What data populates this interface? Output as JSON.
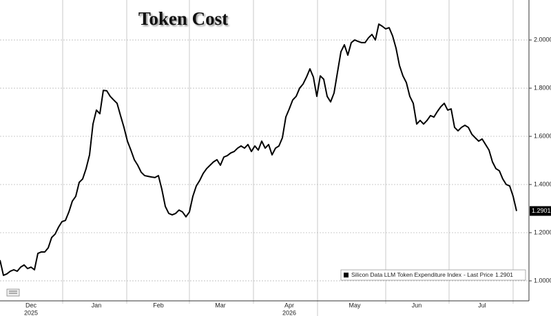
{
  "chart_data": {
    "type": "line",
    "title": "Token Cost",
    "categories": [
      null,
      null,
      null,
      null,
      null,
      null,
      null,
      null,
      null,
      "Dec",
      null,
      null,
      null,
      null,
      null,
      null,
      null,
      null,
      null,
      null,
      null,
      null,
      null,
      null,
      null,
      null,
      null,
      null,
      "Jan",
      null,
      null,
      null,
      null,
      null,
      null,
      null,
      null,
      null,
      null,
      null,
      null,
      null,
      null,
      null,
      null,
      null,
      "Feb",
      null,
      null,
      null,
      null,
      null,
      null,
      null,
      null,
      null,
      null,
      null,
      null,
      null,
      null,
      null,
      null,
      null,
      "Mar",
      null,
      null,
      null,
      null,
      null,
      null,
      null,
      null,
      null,
      null,
      null,
      null,
      null,
      null,
      null,
      null,
      null,
      null,
      null,
      "Apr",
      null,
      null,
      null,
      null,
      null,
      null,
      null,
      null,
      null,
      null,
      null,
      null,
      null,
      null,
      null,
      null,
      null,
      null,
      "May",
      null,
      null,
      null,
      null,
      null,
      null,
      null,
      null,
      null,
      null,
      null,
      null,
      null,
      null,
      null,
      null,
      null,
      "Jun",
      null,
      null,
      null,
      null,
      null,
      null,
      null,
      null,
      null,
      null,
      null,
      null,
      null,
      null,
      null,
      null,
      null,
      null,
      "Jul",
      null,
      null,
      null,
      null,
      null,
      null,
      null,
      null,
      null,
      null
    ],
    "category_years": [
      null,
      null,
      null,
      null,
      null,
      null,
      null,
      null,
      null,
      "2025",
      null,
      null,
      null,
      null,
      null,
      null,
      null,
      null,
      null,
      null,
      null,
      null,
      null,
      null,
      null,
      null,
      null,
      null,
      null,
      null,
      null,
      null,
      null,
      null,
      null,
      null,
      null,
      null,
      null,
      null,
      null,
      null,
      null,
      null,
      null,
      null,
      null,
      null,
      null,
      null,
      null,
      null,
      null,
      null,
      null,
      null,
      null,
      null,
      null,
      null,
      null,
      null,
      null,
      null,
      null,
      null,
      null,
      null,
      null,
      null,
      null,
      null,
      null,
      null,
      null,
      null,
      null,
      null,
      null,
      null,
      null,
      null,
      null,
      null,
      "2026",
      null,
      null,
      null,
      null,
      null,
      null,
      null,
      null,
      null,
      null,
      null,
      null,
      null,
      null,
      null,
      null,
      null,
      null,
      null,
      null,
      null,
      null,
      null,
      null,
      null,
      null,
      null,
      null,
      null,
      null,
      null,
      null,
      null,
      null,
      null,
      null,
      null,
      null,
      null,
      null,
      null,
      null,
      null,
      null,
      null,
      null,
      null,
      null,
      null,
      null,
      null,
      null,
      null,
      null,
      null,
      null,
      null,
      null,
      null,
      null,
      null,
      null,
      null,
      null,
      null,
      null
    ],
    "series": [
      {
        "name": "Silicon Data LLM Token Expenditure Index",
        "color": "#000000",
        "values": [
          1.086,
          1.023,
          1.029,
          1.04,
          1.046,
          1.04,
          1.057,
          1.066,
          1.051,
          1.057,
          1.046,
          1.114,
          1.12,
          1.12,
          1.137,
          1.18,
          1.194,
          1.223,
          1.246,
          1.251,
          1.286,
          1.331,
          1.351,
          1.409,
          1.423,
          1.466,
          1.523,
          1.651,
          1.709,
          1.694,
          1.791,
          1.789,
          1.766,
          1.751,
          1.737,
          1.686,
          1.637,
          1.58,
          1.543,
          1.503,
          1.48,
          1.451,
          1.437,
          1.434,
          1.431,
          1.429,
          1.437,
          1.38,
          1.309,
          1.28,
          1.274,
          1.28,
          1.294,
          1.286,
          1.266,
          1.286,
          1.351,
          1.394,
          1.417,
          1.446,
          1.466,
          1.48,
          1.494,
          1.503,
          1.48,
          1.514,
          1.52,
          1.531,
          1.537,
          1.551,
          1.56,
          1.551,
          1.566,
          1.537,
          1.56,
          1.543,
          1.58,
          1.551,
          1.566,
          1.523,
          1.551,
          1.56,
          1.594,
          1.68,
          1.714,
          1.751,
          1.766,
          1.8,
          1.817,
          1.846,
          1.88,
          1.846,
          1.766,
          1.851,
          1.837,
          1.766,
          1.743,
          1.78,
          1.866,
          1.951,
          1.98,
          1.937,
          1.989,
          2.0,
          1.994,
          1.989,
          1.989,
          2.009,
          2.023,
          2.0,
          2.066,
          2.057,
          2.046,
          2.051,
          2.017,
          1.966,
          1.894,
          1.851,
          1.823,
          1.766,
          1.737,
          1.651,
          1.666,
          1.651,
          1.666,
          1.686,
          1.68,
          1.703,
          1.723,
          1.737,
          1.709,
          1.714,
          1.637,
          1.623,
          1.637,
          1.646,
          1.637,
          1.609,
          1.594,
          1.58,
          1.589,
          1.566,
          1.543,
          1.494,
          1.466,
          1.457,
          1.423,
          1.4,
          1.394,
          1.351,
          1.2901
        ]
      }
    ],
    "ylim": [
      0.917,
      2.166
    ],
    "yticks": [
      {
        "value": 1.0,
        "label": "1.0000"
      },
      {
        "value": 1.2,
        "label": "1.2000"
      },
      {
        "value": 1.4,
        "label": "1.4000"
      },
      {
        "value": 1.6,
        "label": "1.6000"
      },
      {
        "value": 1.8,
        "label": "1.8000"
      },
      {
        "value": 2.0,
        "label": "2.0000"
      }
    ],
    "grid": true,
    "last_price_label": "- Last Price",
    "last_price": {
      "value": 1.2901,
      "label": "1.2901"
    }
  }
}
